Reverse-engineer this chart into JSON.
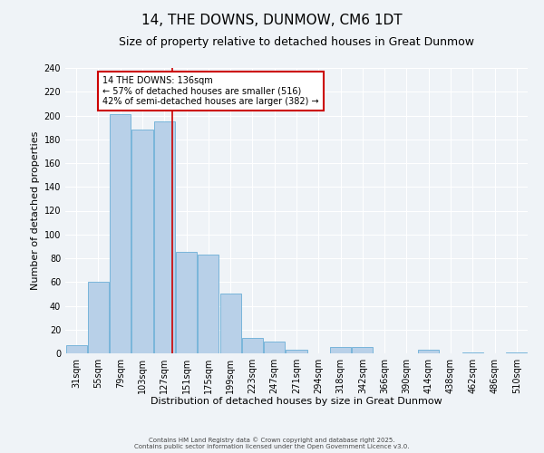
{
  "title": "14, THE DOWNS, DUNMOW, CM6 1DT",
  "subtitle": "Size of property relative to detached houses in Great Dunmow",
  "xlabel": "Distribution of detached houses by size in Great Dunmow",
  "ylabel": "Number of detached properties",
  "categories": [
    "31sqm",
    "55sqm",
    "79sqm",
    "103sqm",
    "127sqm",
    "151sqm",
    "175sqm",
    "199sqm",
    "223sqm",
    "247sqm",
    "271sqm",
    "294sqm",
    "318sqm",
    "342sqm",
    "366sqm",
    "390sqm",
    "414sqm",
    "438sqm",
    "462sqm",
    "486sqm",
    "510sqm"
  ],
  "values": [
    7,
    60,
    201,
    188,
    195,
    85,
    83,
    50,
    13,
    10,
    3,
    0,
    5,
    5,
    0,
    0,
    3,
    0,
    1,
    0,
    1
  ],
  "bar_color": "#b8d0e8",
  "bar_edge_color": "#6aaed6",
  "vline_color": "#cc0000",
  "ylim": [
    0,
    240
  ],
  "yticks": [
    0,
    20,
    40,
    60,
    80,
    100,
    120,
    140,
    160,
    180,
    200,
    220,
    240
  ],
  "annotation_title": "14 THE DOWNS: 136sqm",
  "annotation_line1": "← 57% of detached houses are smaller (516)",
  "annotation_line2": "42% of semi-detached houses are larger (382) →",
  "annotation_box_color": "#ffffff",
  "annotation_box_edge_color": "#cc0000",
  "footer1": "Contains HM Land Registry data © Crown copyright and database right 2025.",
  "footer2": "Contains public sector information licensed under the Open Government Licence v3.0.",
  "bg_color": "#eff3f7",
  "grid_color": "#ffffff",
  "title_fontsize": 11,
  "subtitle_fontsize": 9,
  "xlabel_fontsize": 8,
  "ylabel_fontsize": 8,
  "tick_fontsize": 7,
  "footer_fontsize": 5,
  "annot_fontsize": 7
}
